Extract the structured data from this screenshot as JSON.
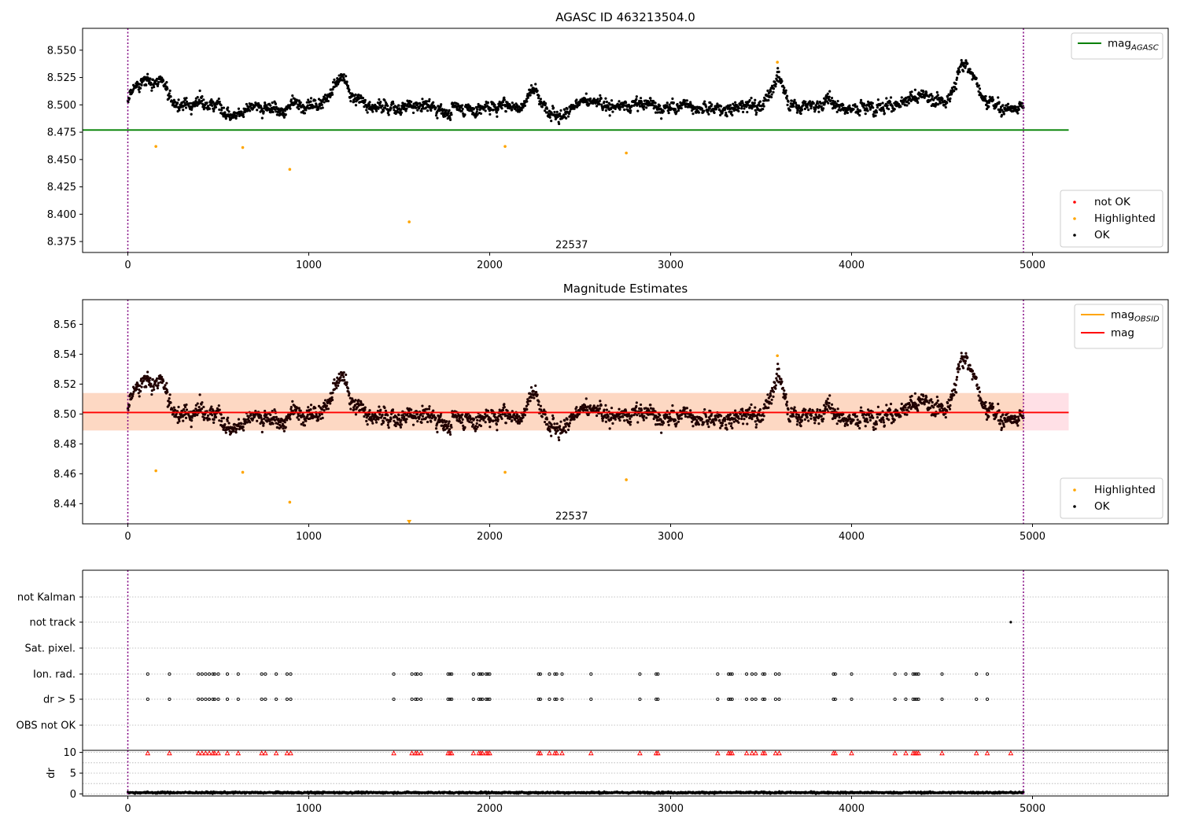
{
  "chart_data": [
    {
      "type": "scatter",
      "title": "AGASC ID 463213504.0",
      "xlim": [
        -250,
        5750
      ],
      "ylim": [
        8.365,
        8.57
      ],
      "x_ticks": [
        0,
        1000,
        2000,
        3000,
        4000,
        5000
      ],
      "y_ticks": [
        8.375,
        8.4,
        8.425,
        8.45,
        8.475,
        8.5,
        8.525,
        8.55
      ],
      "y_tick_labels": [
        "8.375",
        "8.400",
        "8.425",
        "8.450",
        "8.475",
        "8.500",
        "8.525",
        "8.550"
      ],
      "vlines": [
        0,
        4950
      ],
      "annotation": {
        "text": "22537",
        "x": 2450,
        "y": 8.372
      },
      "hline": {
        "name": "mag_AGASC",
        "value": 8.477,
        "xrange": [
          -250,
          5200
        ],
        "color": "#008000"
      },
      "line_legend": [
        {
          "label": "mag",
          "sub": "AGASC",
          "color": "#008000"
        }
      ],
      "marker_legend": [
        {
          "label": "not OK",
          "color": "#ff0000"
        },
        {
          "label": "Highlighted",
          "color": "#ffa500"
        },
        {
          "label": "OK",
          "color": "#000000"
        }
      ],
      "series": [
        {
          "name": "OK",
          "color": "#000000",
          "x_range": [
            0,
            4950
          ],
          "n": 2400,
          "mean": 8.5
        },
        {
          "name": "Highlighted",
          "color": "#ffa500",
          "x": [
            155,
            635,
            895,
            1555,
            2085,
            2755,
            3590
          ],
          "y": [
            8.462,
            8.461,
            8.441,
            8.393,
            8.462,
            8.456,
            8.539
          ]
        }
      ]
    },
    {
      "type": "scatter",
      "title": "Magnitude Estimates",
      "xlim": [
        -250,
        5750
      ],
      "ylim": [
        8.4265,
        8.5765
      ],
      "x_ticks": [
        0,
        1000,
        2000,
        3000,
        4000,
        5000
      ],
      "y_ticks": [
        8.44,
        8.46,
        8.48,
        8.5,
        8.52,
        8.54,
        8.56
      ],
      "y_tick_labels": [
        "8.44",
        "8.46",
        "8.48",
        "8.50",
        "8.52",
        "8.54",
        "8.56"
      ],
      "vlines": [
        0,
        4950
      ],
      "annotation": {
        "text": "22537",
        "x": 2450,
        "y": 8.4315
      },
      "hline": {
        "name": "mag",
        "value": 8.501,
        "xrange": [
          -250,
          5200
        ],
        "color": "#ff0000"
      },
      "band_outer": {
        "lo": 8.489,
        "hi": 8.514,
        "color": "#ffe0e6"
      },
      "band_inner": {
        "lo": 8.489,
        "hi": 8.514,
        "x_end": 4950,
        "color": "#fdd8c3"
      },
      "line_legend": [
        {
          "label": "mag",
          "sub": "OBSID",
          "color": "#ffa500"
        },
        {
          "label": "mag",
          "sub": "",
          "color": "#ff0000"
        }
      ],
      "marker_legend": [
        {
          "label": "Highlighted",
          "color": "#ffa500"
        },
        {
          "label": "OK",
          "color": "#000000"
        }
      ],
      "series": [
        {
          "name": "OK",
          "color": "#000000",
          "x_range": [
            0,
            4950
          ],
          "n": 2400,
          "mean": 8.5
        },
        {
          "name": "Highlighted",
          "color": "#ffa500",
          "x": [
            155,
            635,
            895,
            1555,
            2085,
            2755,
            3590
          ],
          "y": [
            8.462,
            8.461,
            8.441,
            8.428,
            8.461,
            8.456,
            8.539
          ]
        }
      ]
    },
    {
      "type": "scatter",
      "title": "",
      "xlim": [
        -250,
        5750
      ],
      "categories": [
        "not Kalman",
        "not track",
        "Sat. pixel.",
        "Ion. rad.",
        "dr > 5",
        "OBS not OK"
      ],
      "flag_events": {
        "not track": [
          4880
        ],
        "Ion. rad.": [
          110,
          230,
          390,
          410,
          430,
          450,
          470,
          480,
          500,
          550,
          610,
          740,
          760,
          820,
          880,
          900,
          1470,
          1570,
          1590,
          1600,
          1620,
          1770,
          1780,
          1790,
          1910,
          1940,
          1950,
          1960,
          1980,
          1990,
          2000,
          2270,
          2280,
          2330,
          2360,
          2370,
          2400,
          2560,
          2830,
          2920,
          2930,
          3260,
          3320,
          3330,
          3340,
          3420,
          3450,
          3470,
          3510,
          3520,
          3580,
          3600,
          3900,
          3910,
          4000,
          4240,
          4300,
          4340,
          4350,
          4360,
          4370,
          4500,
          4690,
          4750
        ]
      },
      "vlines": [
        0,
        4950
      ]
    },
    {
      "type": "scatter",
      "ylabel": "dr",
      "xlim": [
        -250,
        5750
      ],
      "ylim": [
        -0.5,
        10.5
      ],
      "x_ticks": [
        0,
        1000,
        2000,
        3000,
        4000,
        5000
      ],
      "y_ticks": [
        0,
        5,
        10
      ],
      "y_tick_labels": [
        "0",
        "5",
        "10"
      ],
      "vlines": [
        0,
        4950
      ],
      "series": [
        {
          "name": "dr",
          "color": "#000000",
          "x_range": [
            0,
            4950
          ],
          "n": 2400,
          "mean": 0.3
        },
        {
          "name": "clipped",
          "color": "#ff0000",
          "marker": "triangle-up",
          "value": 9.8
        }
      ]
    }
  ]
}
